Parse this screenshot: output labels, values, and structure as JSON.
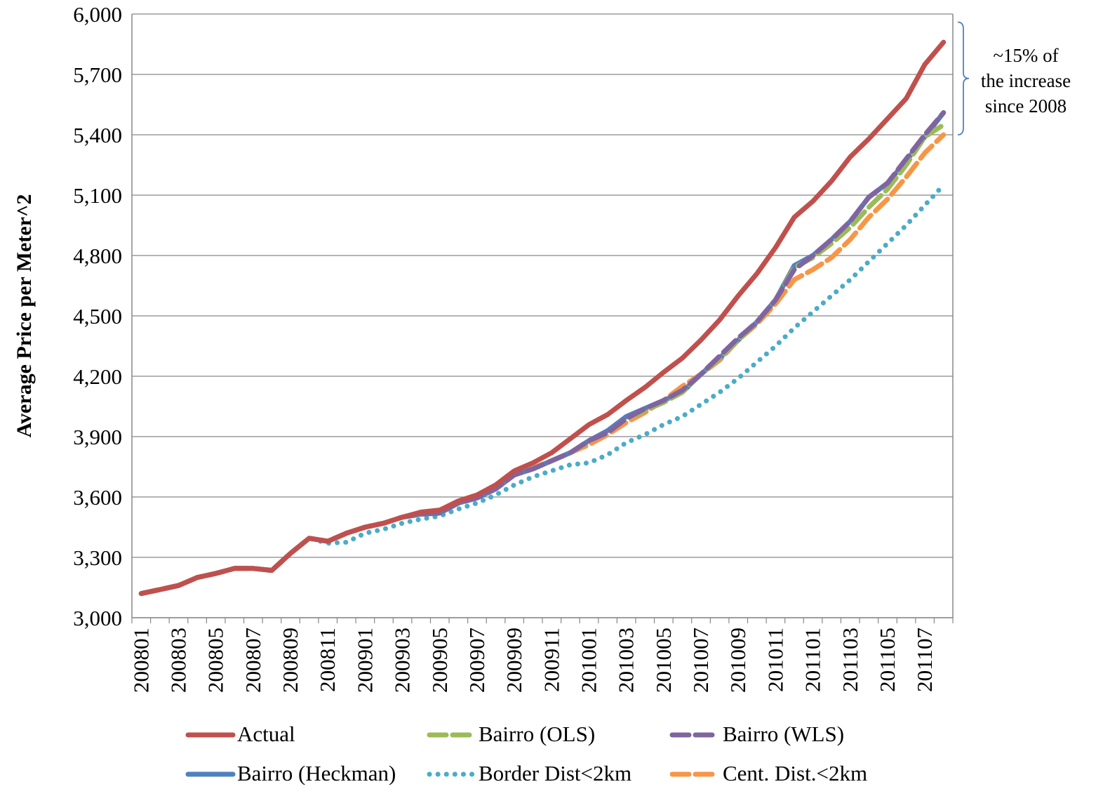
{
  "chart_data": {
    "type": "line",
    "xlabel": "",
    "ylabel": "Average Price per Meter^2",
    "ylim": [
      3000,
      6000
    ],
    "yticks": [
      3000,
      3300,
      3600,
      3900,
      4200,
      4500,
      4800,
      5100,
      5400,
      5700,
      6000
    ],
    "ytick_labels": [
      "3,000",
      "3,300",
      "3,600",
      "3,900",
      "4,200",
      "4,500",
      "4,800",
      "5,100",
      "5,400",
      "5,700",
      "6,000"
    ],
    "categories": [
      "200801",
      "200802",
      "200803",
      "200804",
      "200805",
      "200806",
      "200807",
      "200808",
      "200809",
      "200810",
      "200811",
      "200812",
      "200901",
      "200902",
      "200903",
      "200904",
      "200905",
      "200906",
      "200907",
      "200908",
      "200909",
      "200910",
      "200911",
      "200912",
      "201001",
      "201002",
      "201003",
      "201004",
      "201005",
      "201006",
      "201007",
      "201008",
      "201009",
      "201010",
      "201011",
      "201012",
      "201101",
      "201102",
      "201103",
      "201104",
      "201105",
      "201106",
      "201107",
      "201108"
    ],
    "tick_labels": [
      "200801",
      "200803",
      "200805",
      "200807",
      "200809",
      "200811",
      "200901",
      "200903",
      "200905",
      "200907",
      "200909",
      "200911",
      "201001",
      "201003",
      "201005",
      "201007",
      "201009",
      "201011",
      "201101",
      "201103",
      "201105",
      "201107"
    ],
    "grid": true,
    "legend_position": "bottom",
    "series": [
      {
        "name": "Actual",
        "color": "#C0504D",
        "dash": "solid",
        "values": [
          3120,
          3140,
          3160,
          3200,
          3220,
          3245,
          3245,
          3235,
          3320,
          3395,
          3380,
          3420,
          3450,
          3470,
          3500,
          3525,
          3535,
          3580,
          3610,
          3660,
          3730,
          3770,
          3820,
          3890,
          3960,
          4010,
          4080,
          4145,
          4220,
          4290,
          4380,
          4480,
          4600,
          4710,
          4840,
          4990,
          5070,
          5170,
          5290,
          5380,
          5480,
          5580,
          5750,
          5860
        ]
      },
      {
        "name": "Bairro (OLS)",
        "color": "#9BBB59",
        "dash": "dashed",
        "values": [
          3120,
          3140,
          3160,
          3200,
          3220,
          3245,
          3245,
          3235,
          3320,
          3395,
          3380,
          3420,
          3450,
          3470,
          3500,
          3515,
          3520,
          3570,
          3595,
          3640,
          3710,
          3740,
          3780,
          3820,
          3880,
          3920,
          3990,
          4030,
          4070,
          4120,
          4210,
          4290,
          4380,
          4470,
          4580,
          4740,
          4790,
          4860,
          4940,
          5040,
          5130,
          5250,
          5390,
          5450
        ]
      },
      {
        "name": "Bairro (WLS)",
        "color": "#8064A2",
        "dash": "dashed",
        "values": [
          3120,
          3140,
          3160,
          3200,
          3220,
          3245,
          3245,
          3235,
          3320,
          3395,
          3380,
          3420,
          3450,
          3470,
          3500,
          3515,
          3520,
          3570,
          3595,
          3640,
          3710,
          3740,
          3780,
          3820,
          3880,
          3920,
          3990,
          4040,
          4080,
          4130,
          4210,
          4300,
          4390,
          4470,
          4580,
          4730,
          4800,
          4880,
          4970,
          5090,
          5160,
          5280,
          5400,
          5510
        ]
      },
      {
        "name": "Bairro (Heckman)",
        "color": "#4F81BD",
        "dash": "solid",
        "values": [
          3120,
          3140,
          3160,
          3200,
          3220,
          3245,
          3245,
          3235,
          3320,
          3395,
          3380,
          3420,
          3450,
          3470,
          3500,
          3515,
          3520,
          3570,
          3595,
          3640,
          3710,
          3740,
          3780,
          3820,
          3880,
          3930,
          4000,
          4040,
          4080,
          4120,
          4210,
          4290,
          4380,
          4470,
          4580,
          4750,
          4800,
          4880,
          4970,
          5090,
          5160,
          5270,
          5390,
          5510
        ]
      },
      {
        "name": "Border Dist<2km",
        "color": "#4BACC6",
        "dash": "dotted",
        "values": [
          3120,
          3140,
          3160,
          3200,
          3220,
          3245,
          3245,
          3235,
          3320,
          3395,
          3370,
          3375,
          3420,
          3440,
          3470,
          3490,
          3505,
          3540,
          3570,
          3610,
          3660,
          3700,
          3730,
          3760,
          3770,
          3810,
          3870,
          3910,
          3960,
          4000,
          4060,
          4120,
          4190,
          4270,
          4350,
          4440,
          4520,
          4600,
          4680,
          4770,
          4860,
          4950,
          5050,
          5150
        ]
      },
      {
        "name": "Cent. Dist.<2km",
        "color": "#F79646",
        "dash": "dashed",
        "values": [
          3120,
          3140,
          3160,
          3200,
          3220,
          3245,
          3245,
          3235,
          3320,
          3395,
          3380,
          3420,
          3450,
          3470,
          3500,
          3515,
          3520,
          3570,
          3600,
          3650,
          3710,
          3745,
          3780,
          3820,
          3860,
          3910,
          3970,
          4020,
          4080,
          4150,
          4210,
          4280,
          4380,
          4460,
          4560,
          4680,
          4730,
          4790,
          4880,
          4990,
          5080,
          5190,
          5310,
          5400
        ]
      }
    ],
    "annotation": {
      "lines": [
        "~15% of",
        "the increase",
        "since 2008"
      ],
      "bracket_range": [
        5400,
        5960
      ]
    }
  }
}
